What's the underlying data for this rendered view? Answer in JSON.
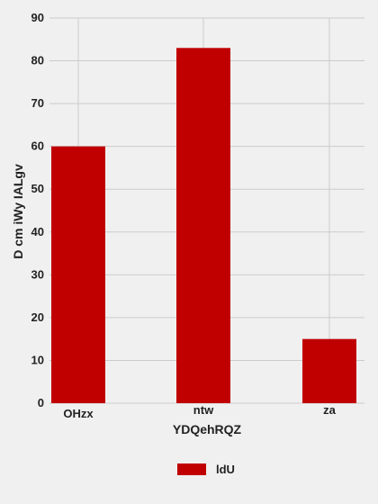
{
  "chart_data": {
    "type": "bar",
    "title": "",
    "xlabel": "YDQehRQZ",
    "ylabel": "D cm iWy IALgv",
    "categories": [
      "OHzx",
      "ntw",
      "za"
    ],
    "series": [
      {
        "name": "ldU",
        "values": [
          60,
          83,
          15
        ],
        "color": "#c00000"
      }
    ],
    "ylim": [
      0,
      90
    ],
    "yticks": [
      0,
      10,
      20,
      30,
      40,
      50,
      60,
      70,
      80,
      90
    ],
    "grid": true,
    "legend_position": "bottom-center"
  },
  "style": {
    "background": "#f0f0f0",
    "grid_color": "#cbcbcb",
    "bar_color": "#c00000",
    "text_color": "#222222"
  }
}
